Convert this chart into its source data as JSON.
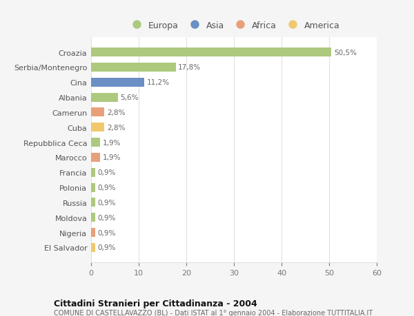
{
  "categories": [
    "Croazia",
    "Serbia/Montenegro",
    "Cina",
    "Albania",
    "Camerun",
    "Cuba",
    "Repubblica Ceca",
    "Marocco",
    "Francia",
    "Polonia",
    "Russia",
    "Moldova",
    "Nigeria",
    "El Salvador"
  ],
  "values": [
    50.5,
    17.8,
    11.2,
    5.6,
    2.8,
    2.8,
    1.9,
    1.9,
    0.9,
    0.9,
    0.9,
    0.9,
    0.9,
    0.9
  ],
  "labels": [
    "50,5%",
    "17,8%",
    "11,2%",
    "5,6%",
    "2,8%",
    "2,8%",
    "1,9%",
    "1,9%",
    "0,9%",
    "0,9%",
    "0,9%",
    "0,9%",
    "0,9%",
    "0,9%"
  ],
  "colors": [
    "#adc97e",
    "#adc97e",
    "#6a8fc4",
    "#adc97e",
    "#e8a07a",
    "#f0c96e",
    "#adc97e",
    "#e8a07a",
    "#adc97e",
    "#adc97e",
    "#adc97e",
    "#adc97e",
    "#e8a07a",
    "#f0c96e"
  ],
  "legend_labels": [
    "Europa",
    "Asia",
    "Africa",
    "America"
  ],
  "legend_colors": [
    "#adc97e",
    "#6a8fc4",
    "#e8a07a",
    "#f0c96e"
  ],
  "title": "Cittadini Stranieri per Cittadinanza - 2004",
  "subtitle": "COMUNE DI CASTELLAVAZZO (BL) - Dati ISTAT al 1° gennaio 2004 - Elaborazione TUTTITALIA.IT",
  "xlim": [
    0,
    60
  ],
  "xticks": [
    0,
    10,
    20,
    30,
    40,
    50,
    60
  ],
  "background_color": "#f5f5f5",
  "bar_background_color": "#ffffff",
  "grid_color": "#e0e0e0"
}
